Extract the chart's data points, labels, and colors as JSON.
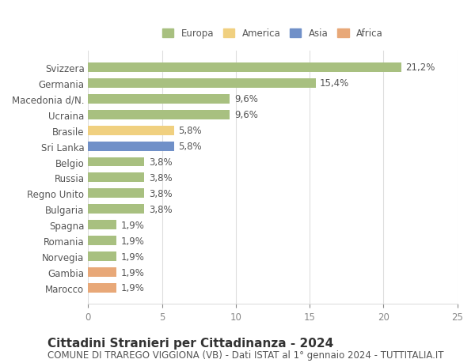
{
  "categories": [
    "Svizzera",
    "Germania",
    "Macedonia d/N.",
    "Ucraina",
    "Brasile",
    "Sri Lanka",
    "Belgio",
    "Russia",
    "Regno Unito",
    "Bulgaria",
    "Spagna",
    "Romania",
    "Norvegia",
    "Gambia",
    "Marocco"
  ],
  "values": [
    21.2,
    15.4,
    9.6,
    9.6,
    5.8,
    5.8,
    3.8,
    3.8,
    3.8,
    3.8,
    1.9,
    1.9,
    1.9,
    1.9,
    1.9
  ],
  "labels": [
    "21,2%",
    "15,4%",
    "9,6%",
    "9,6%",
    "5,8%",
    "5,8%",
    "3,8%",
    "3,8%",
    "3,8%",
    "3,8%",
    "1,9%",
    "1,9%",
    "1,9%",
    "1,9%",
    "1,9%"
  ],
  "continent": [
    "Europa",
    "Europa",
    "Europa",
    "Europa",
    "America",
    "Asia",
    "Europa",
    "Europa",
    "Europa",
    "Europa",
    "Europa",
    "Europa",
    "Europa",
    "Africa",
    "Africa"
  ],
  "colors": {
    "Europa": "#a8c080",
    "America": "#f0d080",
    "Asia": "#7090c8",
    "Africa": "#e8a878"
  },
  "legend_order": [
    "Europa",
    "America",
    "Asia",
    "Africa"
  ],
  "legend_colors": [
    "#a8c080",
    "#f0d080",
    "#7090c8",
    "#e8a878"
  ],
  "xlim": [
    0,
    25
  ],
  "xticks": [
    0,
    5,
    10,
    15,
    20,
    25
  ],
  "title1": "Cittadini Stranieri per Cittadinanza - 2024",
  "title2": "COMUNE DI TRAREGO VIGGIONA (VB) - Dati ISTAT al 1° gennaio 2024 - TUTTITALIA.IT",
  "bg_color": "#ffffff",
  "grid_color": "#dddddd",
  "bar_height": 0.6,
  "label_fontsize": 8.5,
  "tick_fontsize": 8.5,
  "title1_fontsize": 11,
  "title2_fontsize": 8.5
}
